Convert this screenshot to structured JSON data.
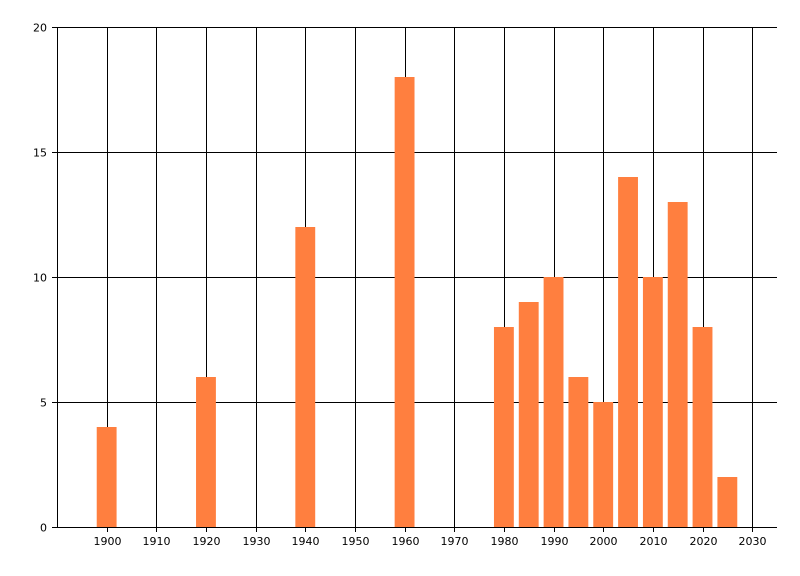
{
  "chart_data": {
    "type": "bar",
    "title": "",
    "xlabel": "",
    "ylabel": "",
    "x": [
      1900,
      1920,
      1940,
      1960,
      1980,
      1985,
      1990,
      1995,
      2000,
      2005,
      2010,
      2015,
      2020,
      2025
    ],
    "values": [
      4,
      6,
      12,
      18,
      8,
      9,
      10,
      6,
      5,
      14,
      10,
      13,
      8,
      2
    ],
    "bar_width_years": 4,
    "xlim": [
      1890,
      2035
    ],
    "ylim": [
      0,
      20
    ],
    "xticks": [
      1900,
      1910,
      1920,
      1930,
      1940,
      1950,
      1960,
      1970,
      1980,
      1990,
      2000,
      2010,
      2020,
      2030
    ],
    "yticks": [
      0,
      5,
      10,
      15,
      20
    ],
    "grid": true,
    "legend": "none",
    "bar_color": "#ff7f3f",
    "grid_color": "#000000"
  }
}
